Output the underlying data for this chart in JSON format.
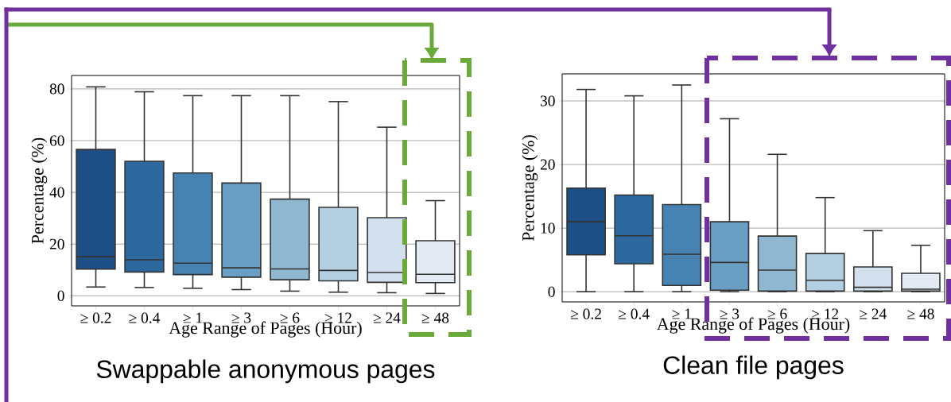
{
  "chart_data": [
    {
      "type": "box",
      "title": "Swappable anonymous pages",
      "xlabel": "Age Range of Pages (Hour)",
      "ylabel": "Percentage (%)",
      "categories": [
        "≥ 0.2",
        "≥ 0.4",
        "≥ 1",
        "≥ 3",
        "≥ 6",
        "≥ 12",
        "≥ 24",
        "≥ 48"
      ],
      "boxes": [
        {
          "low": 3.4,
          "q1": 10.3,
          "median": 15.1,
          "q3": 56.6,
          "high": 80.8
        },
        {
          "low": 3.2,
          "q1": 9.2,
          "median": 13.9,
          "q3": 52.0,
          "high": 78.9
        },
        {
          "low": 2.9,
          "q1": 8.2,
          "median": 12.6,
          "q3": 47.5,
          "high": 77.4
        },
        {
          "low": 2.4,
          "q1": 7.2,
          "median": 10.8,
          "q3": 43.6,
          "high": 77.4
        },
        {
          "low": 1.8,
          "q1": 6.2,
          "median": 10.4,
          "q3": 37.4,
          "high": 77.4
        },
        {
          "low": 1.4,
          "q1": 5.8,
          "median": 9.8,
          "q3": 34.2,
          "high": 75.1
        },
        {
          "low": 1.2,
          "q1": 5.2,
          "median": 9.0,
          "q3": 30.2,
          "high": 65.2
        },
        {
          "low": 0.9,
          "q1": 5.1,
          "median": 8.3,
          "q3": 21.3,
          "high": 36.8
        }
      ],
      "colors": [
        "#1d4e85",
        "#2d699e",
        "#4683b2",
        "#689fc2",
        "#8fb7cf",
        "#b4cfe1",
        "#d2dfec",
        "#e3eaf4"
      ],
      "ylim": [
        -3.9,
        85.2
      ],
      "yticks": [
        0,
        20,
        40,
        60,
        80
      ],
      "grid": "y"
    },
    {
      "type": "box",
      "title": "Clean file pages",
      "xlabel": "Age Range of Pages (Hour)",
      "ylabel": "Percentage (%)",
      "categories": [
        "≥ 0.2",
        "≥ 0.4",
        "≥ 1",
        "≥ 3",
        "≥ 6",
        "≥ 12",
        "≥ 24",
        "≥ 48"
      ],
      "boxes": [
        {
          "low": 0,
          "q1": 5.8,
          "median": 11.0,
          "q3": 16.3,
          "high": 31.8
        },
        {
          "low": 0,
          "q1": 4.4,
          "median": 8.8,
          "q3": 15.2,
          "high": 30.8
        },
        {
          "low": 0,
          "q1": 1.0,
          "median": 5.9,
          "q3": 13.7,
          "high": 32.5
        },
        {
          "low": 0,
          "q1": 0.25,
          "median": 4.6,
          "q3": 11.0,
          "high": 27.2
        },
        {
          "low": 0,
          "q1": 0.1,
          "median": 3.4,
          "q3": 8.75,
          "high": 21.6
        },
        {
          "low": 0,
          "q1": 0.1,
          "median": 1.8,
          "q3": 6.0,
          "high": 14.8
        },
        {
          "low": 0,
          "q1": 0.1,
          "median": 0.7,
          "q3": 3.9,
          "high": 9.6
        },
        {
          "low": 0,
          "q1": 0.1,
          "median": 0.4,
          "q3": 2.9,
          "high": 7.3
        }
      ],
      "colors": [
        "#1d4e85",
        "#2d699e",
        "#4683b2",
        "#689fc2",
        "#8fb7cf",
        "#b4cfe1",
        "#d2dfec",
        "#e3eaf4"
      ],
      "ylim": [
        -1.6,
        34.25
      ],
      "yticks": [
        0,
        10,
        20,
        30
      ],
      "grid": "y"
    }
  ]
}
